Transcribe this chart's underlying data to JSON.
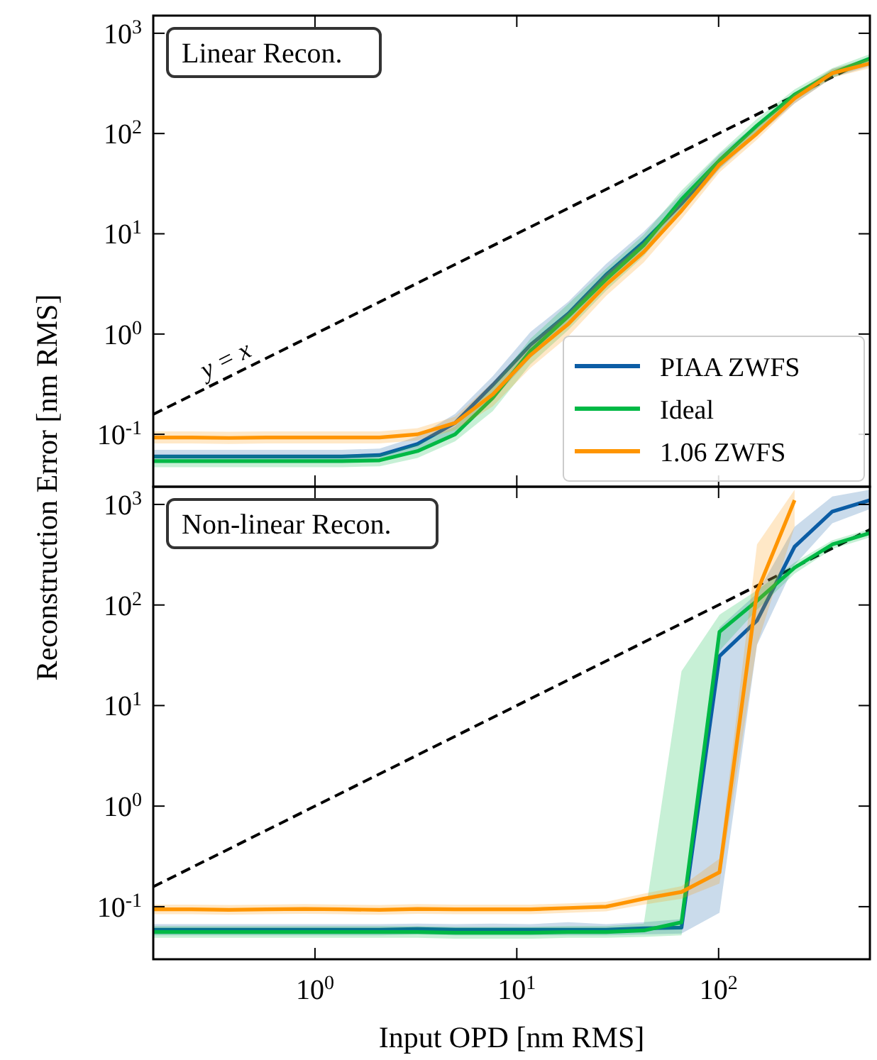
{
  "chart_data": [
    {
      "type": "line",
      "title": "Linear Recon.",
      "ylabel": "Reconstruction Error [nm RMS]",
      "log": "xy",
      "legend": "bottom right",
      "tick_labels": "y",
      "xlim": [
        0.158,
        562
      ],
      "ylim": [
        0.03,
        1500
      ],
      "xticks": [
        1,
        10,
        100
      ],
      "yticks": [
        {
          "value": 0.1,
          "label": "10$^{-1}$"
        },
        {
          "value": 1,
          "label": "10$^{0}$"
        },
        {
          "value": 10,
          "label": "10$^{1}$"
        },
        {
          "value": 100,
          "label": "10$^{2}$"
        },
        {
          "value": 1000,
          "label": "10$^{3}$"
        }
      ],
      "annotations": [
        {
          "text": "y = x",
          "x": 0.3,
          "y": 0.3
        }
      ],
      "series": [
        {
          "x": [
            0.158,
            562
          ],
          "values": [
            0.158,
            562
          ],
          "color": "#000000",
          "line_style": "dashed"
        },
        {
          "name": "PIAA ZWFS",
          "color": "#0c5da5",
          "x": [
            0.158,
            0.244,
            0.375,
            0.575,
            0.885,
            1.36,
            2.09,
            3.22,
            4.95,
            7.6,
            11.7,
            18,
            27.7,
            42.6,
            65.5,
            101,
            155,
            238,
            366,
            562
          ],
          "values": [
            0.06,
            0.06,
            0.06,
            0.06,
            0.06,
            0.06,
            0.062,
            0.08,
            0.13,
            0.31,
            0.78,
            1.6,
            3.9,
            8.3,
            20,
            52,
            null,
            null,
            null,
            null
          ],
          "lower": [
            0.052,
            0.052,
            0.052,
            0.052,
            0.052,
            0.052,
            0.054,
            0.068,
            0.1,
            0.22,
            0.58,
            1.2,
            3,
            6.5,
            16,
            44,
            95,
            200,
            360,
            470
          ],
          "upper": [
            0.07,
            0.07,
            0.07,
            0.07,
            0.07,
            0.07,
            0.072,
            0.095,
            0.16,
            0.38,
            1.05,
            2.1,
            5,
            10.5,
            25,
            62,
            125,
            250,
            440,
            570
          ]
        },
        {
          "name": "Ideal",
          "color": "#00b945",
          "x": [
            0.158,
            0.244,
            0.375,
            0.575,
            0.885,
            1.36,
            2.09,
            3.22,
            4.95,
            7.6,
            11.7,
            18,
            27.7,
            42.6,
            65.5,
            101,
            155,
            238,
            366,
            562
          ],
          "values": [
            0.054,
            0.054,
            0.054,
            0.054,
            0.054,
            0.054,
            0.055,
            0.068,
            0.1,
            0.23,
            0.68,
            1.5,
            3.5,
            7.7,
            22,
            54,
            120,
            245,
            400,
            560
          ],
          "lower": [
            0.047,
            0.047,
            0.047,
            0.047,
            0.047,
            0.047,
            0.048,
            0.058,
            0.085,
            0.17,
            0.5,
            1.1,
            2.7,
            6,
            17,
            45,
            100,
            215,
            360,
            500
          ],
          "upper": [
            0.062,
            0.062,
            0.062,
            0.062,
            0.062,
            0.062,
            0.063,
            0.08,
            0.12,
            0.3,
            0.9,
            2,
            4.5,
            9.8,
            27,
            64,
            140,
            275,
            450,
            620
          ]
        },
        {
          "name": "1.06 ZWFS",
          "color": "#ff9500",
          "x": [
            0.158,
            0.244,
            0.375,
            0.575,
            0.885,
            1.36,
            2.09,
            3.22,
            4.95,
            7.6,
            11.7,
            18,
            27.7,
            42.6,
            65.5,
            101,
            155,
            238,
            366,
            562
          ],
          "values": [
            0.093,
            0.093,
            0.092,
            0.093,
            0.093,
            0.093,
            0.093,
            0.1,
            0.13,
            0.25,
            0.62,
            1.26,
            3.1,
            6.6,
            17,
            49,
            100,
            224,
            400,
            500
          ],
          "lower": [
            0.081,
            0.081,
            0.08,
            0.081,
            0.081,
            0.081,
            0.081,
            0.087,
            0.11,
            0.19,
            0.46,
            0.95,
            2.4,
            5.2,
            14,
            41,
            87,
            200,
            360,
            450
          ],
          "upper": [
            0.107,
            0.107,
            0.106,
            0.107,
            0.107,
            0.107,
            0.107,
            0.115,
            0.15,
            0.33,
            0.82,
            1.65,
            4,
            8.3,
            21,
            58,
            115,
            250,
            440,
            560
          ]
        }
      ]
    },
    {
      "type": "line",
      "title": "Non-linear Recon.",
      "xlabel": "Input OPD [nm RMS]",
      "log": "xy",
      "legend": false,
      "xlim": [
        0.158,
        562
      ],
      "ylim": [
        0.03,
        1500
      ],
      "xticks": [
        {
          "value": 1,
          "label": "10$^{0}$"
        },
        {
          "value": 10,
          "label": "10$^{1}$"
        },
        {
          "value": 100,
          "label": "10$^{2}$"
        }
      ],
      "yticks": [
        {
          "value": 0.1,
          "label": "10$^{-1}$"
        },
        {
          "value": 1,
          "label": "10$^{0}$"
        },
        {
          "value": 10,
          "label": "10$^{1}$"
        },
        {
          "value": 100,
          "label": "10$^{2}$"
        },
        {
          "value": 1000,
          "label": "10$^{3}$"
        }
      ],
      "series": [
        {
          "x": [
            0.158,
            562
          ],
          "values": [
            0.158,
            562
          ],
          "color": "#000000",
          "line_style": "dashed"
        },
        {
          "color": "#0c5da5",
          "x": [
            0.158,
            0.244,
            0.375,
            0.575,
            0.885,
            1.36,
            2.09,
            3.22,
            4.95,
            7.6,
            11.7,
            18,
            27.7,
            42.6,
            65.5,
            101,
            155,
            238,
            366,
            562
          ],
          "values": [
            0.059,
            0.059,
            0.059,
            0.059,
            0.059,
            0.059,
            0.059,
            0.06,
            0.059,
            0.059,
            0.059,
            0.059,
            0.059,
            0.061,
            0.062,
            31,
            70,
            380,
            850,
            1100
          ],
          "lower": [
            0.052,
            0.052,
            0.052,
            0.052,
            0.052,
            0.052,
            0.052,
            0.053,
            0.052,
            0.052,
            0.052,
            0.052,
            0.052,
            0.053,
            0.054,
            0.087,
            40,
            250,
            650,
            900
          ],
          "upper": [
            0.067,
            0.067,
            0.067,
            0.067,
            0.067,
            0.067,
            0.067,
            0.068,
            0.067,
            0.068,
            0.067,
            0.07,
            0.067,
            0.07,
            0.075,
            60,
            130,
            600,
            1200,
            1400
          ]
        },
        {
          "color": "#00b945",
          "x": [
            0.158,
            0.244,
            0.375,
            0.575,
            0.885,
            1.36,
            2.09,
            3.22,
            4.95,
            7.6,
            11.7,
            18,
            27.7,
            42.6,
            65.5,
            101,
            155,
            238,
            366,
            562
          ],
          "values": [
            0.056,
            0.056,
            0.056,
            0.056,
            0.056,
            0.056,
            0.056,
            0.056,
            0.055,
            0.055,
            0.055,
            0.056,
            0.056,
            0.058,
            0.07,
            54,
            110,
            235,
            400,
            520
          ],
          "lower": [
            0.049,
            0.049,
            0.049,
            0.049,
            0.049,
            0.049,
            0.049,
            0.049,
            0.048,
            0.048,
            0.048,
            0.049,
            0.049,
            0.05,
            0.052,
            35,
            90,
            205,
            360,
            470
          ],
          "upper": [
            0.064,
            0.064,
            0.064,
            0.064,
            0.064,
            0.064,
            0.064,
            0.064,
            0.063,
            0.063,
            0.063,
            0.064,
            0.064,
            0.068,
            22,
            80,
            140,
            265,
            440,
            570
          ]
        },
        {
          "color": "#ff9500",
          "x": [
            0.158,
            0.244,
            0.375,
            0.575,
            0.885,
            1.36,
            2.09,
            3.22,
            4.95,
            7.6,
            11.7,
            18,
            27.7,
            42.6,
            65.5,
            101,
            155,
            238
          ],
          "values": [
            0.094,
            0.094,
            0.093,
            0.094,
            0.095,
            0.094,
            0.093,
            0.095,
            0.094,
            0.094,
            0.094,
            0.097,
            0.1,
            0.12,
            0.14,
            0.22,
            135,
            1100
          ],
          "lower": [
            0.084,
            0.084,
            0.083,
            0.084,
            0.085,
            0.084,
            0.083,
            0.085,
            0.084,
            0.084,
            0.084,
            0.087,
            0.09,
            0.105,
            0.12,
            0.17,
            40,
            600
          ],
          "upper": [
            0.105,
            0.105,
            0.104,
            0.105,
            0.106,
            0.105,
            0.104,
            0.106,
            0.105,
            0.105,
            0.105,
            0.108,
            0.112,
            0.135,
            0.16,
            0.3,
            400,
            1400
          ]
        }
      ]
    }
  ]
}
